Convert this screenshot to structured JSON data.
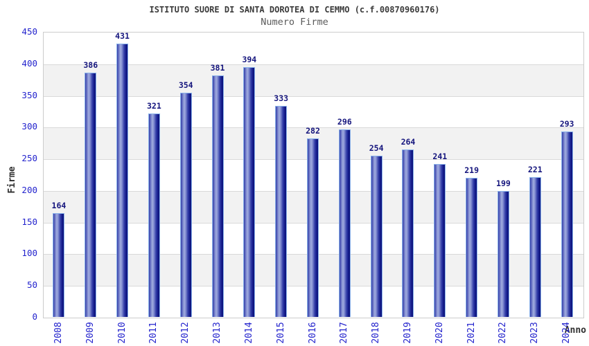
{
  "header": {
    "title": "ISTITUTO SUORE DI SANTA DOROTEA DI CEMMO (c.f.00870960176)",
    "subtitle": "Numero Firme"
  },
  "chart_data": {
    "type": "bar",
    "title": "ISTITUTO SUORE DI SANTA DOROTEA DI CEMMO (c.f.00870960176)",
    "subtitle": "Numero Firme",
    "categories": [
      "2008",
      "2009",
      "2010",
      "2011",
      "2012",
      "2013",
      "2014",
      "2015",
      "2016",
      "2017",
      "2018",
      "2019",
      "2020",
      "2021",
      "2022",
      "2023",
      "2024"
    ],
    "values": [
      164,
      386,
      431,
      321,
      354,
      381,
      394,
      333,
      282,
      296,
      254,
      264,
      241,
      219,
      199,
      221,
      293
    ],
    "xlabel": "Anno",
    "ylabel": "Firme",
    "ylim": [
      0,
      450
    ],
    "ytick_step": 50,
    "yticks": [
      450,
      400,
      350,
      300,
      250,
      200,
      150,
      100,
      50,
      0
    ],
    "grid": true,
    "band_shading": true,
    "legend": "none",
    "value_labels_shown": true
  },
  "colors": {
    "bar_dark": "#0d117b",
    "bar_light": "#a2addf",
    "bar_border": "#8ab2ea",
    "tick_label": "#2323cd",
    "value_label": "#15157d",
    "title": "#3a3a3a",
    "subtitle": "#5a5a5a",
    "axis_label": "#2f2f2f",
    "band_gray": "#f2f2f2",
    "gridline": "#d9d9d9",
    "plot_border": "#cccccc",
    "background": "#ffffff"
  }
}
